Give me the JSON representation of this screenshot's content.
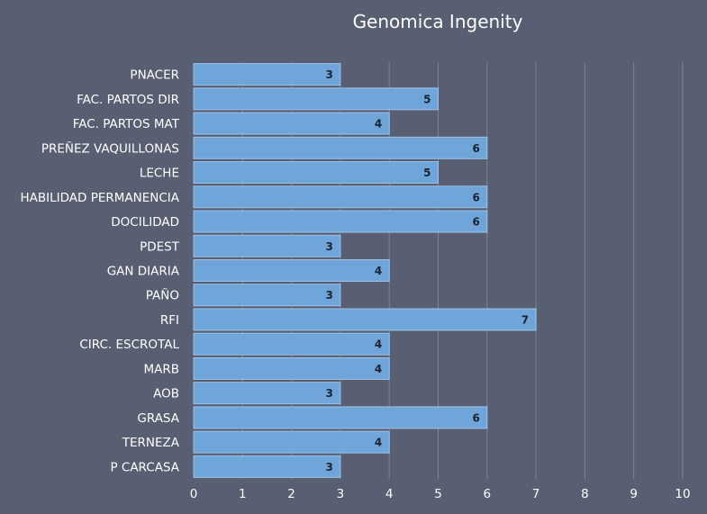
{
  "chart_data": {
    "type": "bar",
    "orientation": "horizontal",
    "title": "Genomica Ingenity",
    "categories": [
      "PNACER",
      "FAC. PARTOS DIR",
      "FAC. PARTOS MAT",
      "PREÑEZ VAQUILLONAS",
      "LECHE",
      "HABILIDAD PERMANENCIA",
      "DOCILIDAD",
      "PDEST",
      "GAN DIARIA",
      "PAÑO",
      "RFI",
      "CIRC. ESCROTAL",
      "MARB",
      "AOB",
      "GRASA",
      "TERNEZA",
      "P CARCASA"
    ],
    "values": [
      3,
      5,
      4,
      6,
      5,
      6,
      6,
      3,
      4,
      3,
      7,
      4,
      4,
      3,
      6,
      4,
      3
    ],
    "xlim": [
      0,
      10
    ],
    "xticks": [
      0,
      1,
      2,
      3,
      4,
      5,
      6,
      7,
      8,
      9,
      10
    ],
    "grid": "vertical",
    "legend": "none",
    "data_labels": true
  },
  "colors": {
    "background": "#595f72",
    "bar_fill": "#6fa5d8",
    "bar_stroke": "#9cc3ea",
    "grid": "#7d8396",
    "text": "#ffffff",
    "data_label": "#1b2233"
  }
}
